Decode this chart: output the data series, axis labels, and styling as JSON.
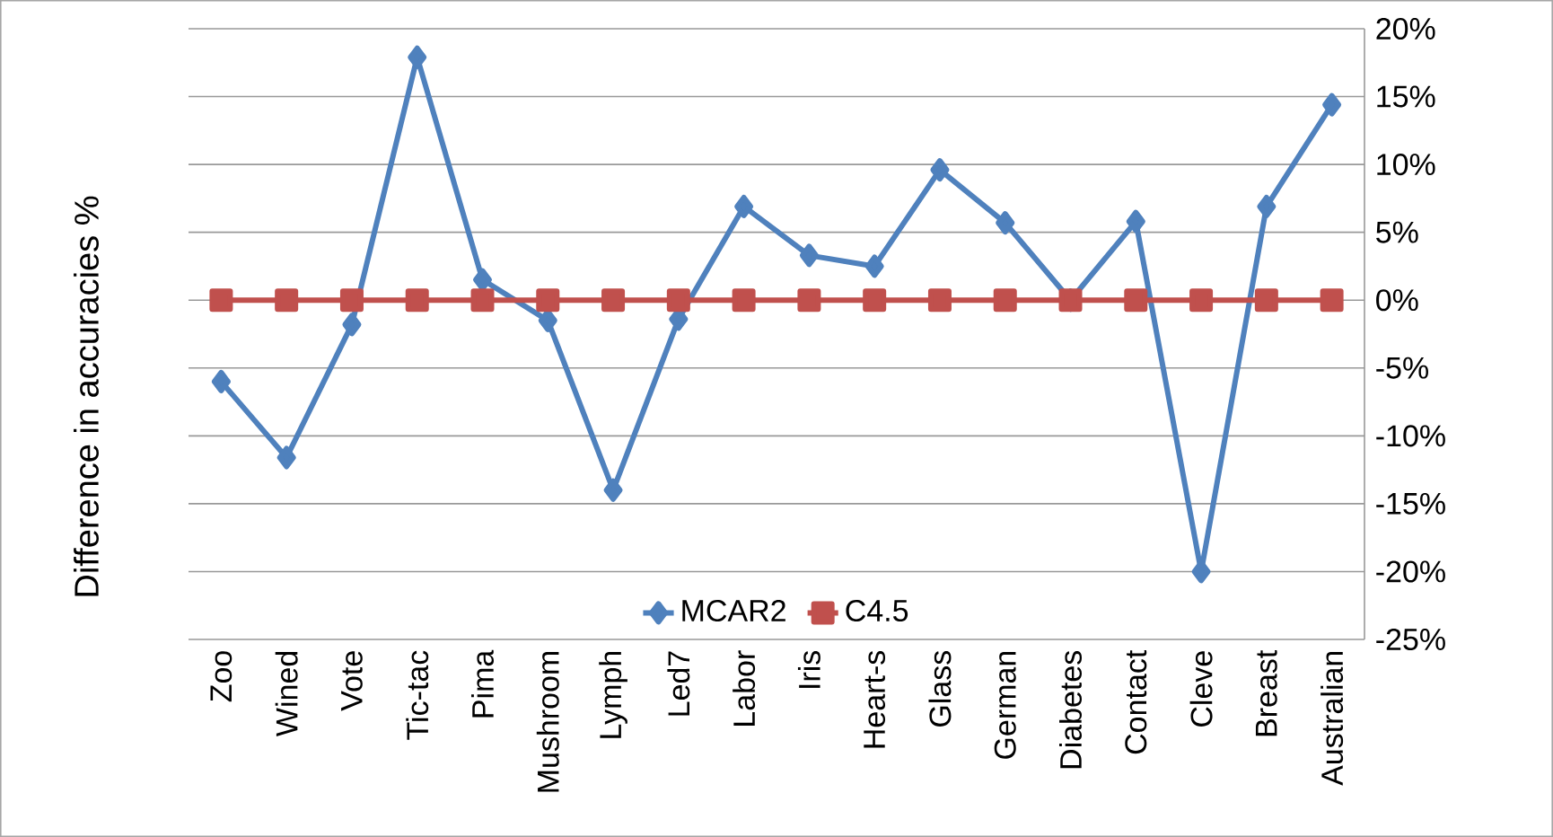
{
  "chart_data": {
    "type": "line",
    "ylabel": "Difference in accuracies %",
    "categories": [
      "Zoo",
      "Wined",
      "Vote",
      "Tic-tac",
      "Pima",
      "Mushroom",
      "Lymph",
      "Led7",
      "Labor",
      "Iris",
      "Heart-s",
      "Glass",
      "German",
      "Diabetes",
      "Contact",
      "Cleve",
      "Breast",
      "Australian"
    ],
    "series": [
      {
        "name": "MCAR2",
        "color": "#4f81bd",
        "marker": "diamond",
        "values": [
          -6.0,
          -11.6,
          -1.8,
          17.9,
          1.5,
          -1.5,
          -14.0,
          -1.4,
          6.9,
          3.3,
          2.5,
          9.6,
          5.7,
          0,
          5.8,
          -20.0,
          6.9,
          14.4
        ]
      },
      {
        "name": "C4.5",
        "color": "#c0504d",
        "marker": "square",
        "values": [
          0,
          0,
          0,
          0,
          0,
          0,
          0,
          0,
          0,
          0,
          0,
          0,
          0,
          0,
          0,
          0,
          0,
          0
        ]
      }
    ],
    "ylim": [
      -25,
      20
    ],
    "yticks": [
      {
        "value": 20,
        "label": "20%"
      },
      {
        "value": 15,
        "label": "15%"
      },
      {
        "value": 10,
        "label": "10%"
      },
      {
        "value": 5,
        "label": "5%"
      },
      {
        "value": 0,
        "label": "0%"
      },
      {
        "value": -5,
        "label": "-5%"
      },
      {
        "value": -10,
        "label": "-10%"
      },
      {
        "value": -15,
        "label": "-15%"
      },
      {
        "value": -20,
        "label": "-20%"
      },
      {
        "value": -25,
        "label": "-25%"
      }
    ],
    "grid": "y",
    "legend": "bottom",
    "line_style": "solid"
  }
}
